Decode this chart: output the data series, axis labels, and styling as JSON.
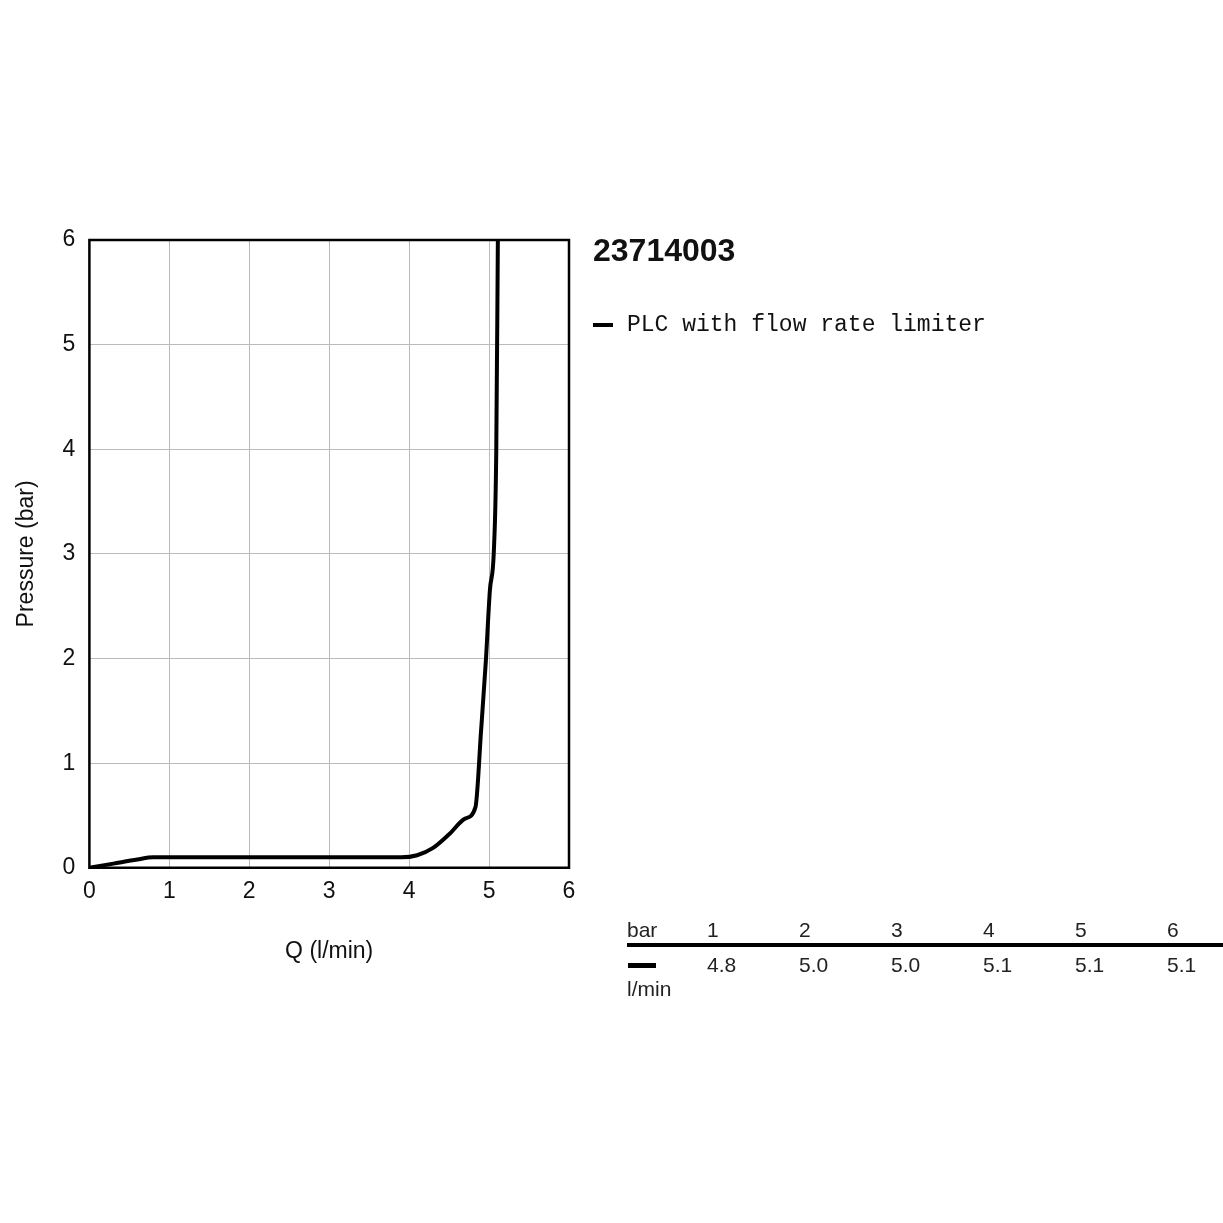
{
  "chart_data": {
    "type": "line",
    "title": "23714003",
    "xlabel": "Q (l/min)",
    "ylabel": "Pressure (bar)",
    "xlim": [
      0,
      6
    ],
    "xticks": [
      0,
      1,
      2,
      3,
      4,
      5,
      6
    ],
    "ylim": [
      0,
      6
    ],
    "yticks": [
      0,
      1,
      2,
      3,
      4,
      5,
      6
    ],
    "grid": true,
    "legend": "top right",
    "marker": "none",
    "line_style": "solid",
    "series": [
      {
        "name": "PLC with flow rate limiter",
        "color": "#000000",
        "x": [
          0,
          0.3,
          0.6,
          0.8,
          1,
          2,
          3,
          3.9,
          4.1,
          4.3,
          4.5,
          4.7,
          4.83,
          4.9,
          4.96,
          5.01,
          5.06,
          5.09,
          5.11
        ],
        "values": [
          0,
          0.04,
          0.08,
          0.1,
          0.1,
          0.1,
          0.1,
          0.1,
          0.12,
          0.19,
          0.32,
          0.47,
          0.58,
          1.31,
          1.98,
          2.65,
          3.03,
          3.98,
          6
        ]
      }
    ],
    "annotations": [
      "bar",
      "1",
      "2",
      "3",
      "4",
      "5",
      "6",
      "l/min",
      "4.8",
      "5.0",
      "5.0",
      "5.1",
      "5.1",
      "5.1"
    ]
  }
}
